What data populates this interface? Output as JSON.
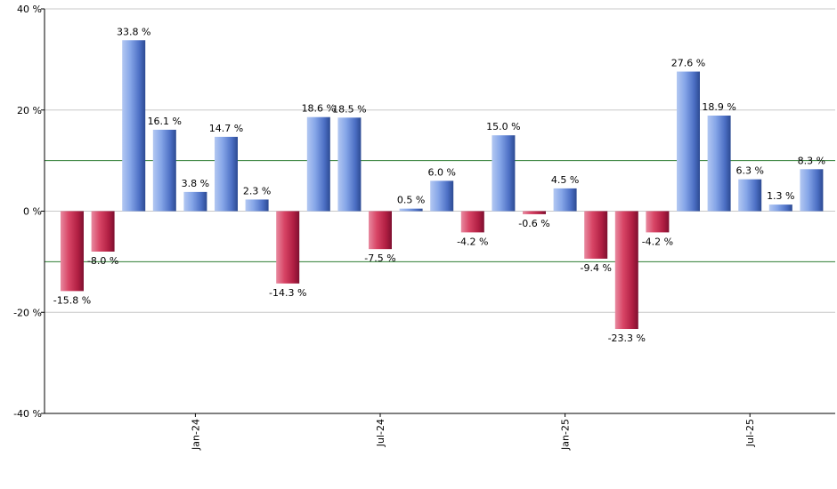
{
  "chart_data": {
    "type": "bar",
    "title": "",
    "xlabel": "",
    "ylabel": "",
    "ylim": [
      -40,
      40
    ],
    "y_ticks": [
      {
        "value": 40,
        "label": "40 %"
      },
      {
        "value": 20,
        "label": "20 %"
      },
      {
        "value": 0,
        "label": "0 %"
      },
      {
        "value": -20,
        "label": "-20 %"
      },
      {
        "value": -40,
        "label": "-40 %"
      }
    ],
    "x_ticks": [
      {
        "index": 4,
        "label": "Jan-24"
      },
      {
        "index": 10,
        "label": "Jul-24"
      },
      {
        "index": 16,
        "label": "Jan-25"
      },
      {
        "index": 22,
        "label": "Jul-25"
      }
    ],
    "reference_lines": [
      10,
      -10
    ],
    "grid": true,
    "colors": {
      "positive": "#7d9fe6",
      "negative": "#cc3355",
      "reference_line": "#2e7d32",
      "grid": "#c8c8c8"
    },
    "bars": [
      {
        "value": -15.8,
        "label": "-15.8 %"
      },
      {
        "value": -8.0,
        "label": "-8.0 %"
      },
      {
        "value": 33.8,
        "label": "33.8 %"
      },
      {
        "value": 16.1,
        "label": "16.1 %"
      },
      {
        "value": 3.8,
        "label": "3.8 %"
      },
      {
        "value": 14.7,
        "label": "14.7 %"
      },
      {
        "value": 2.3,
        "label": "2.3 %"
      },
      {
        "value": -14.3,
        "label": "-14.3 %"
      },
      {
        "value": 18.6,
        "label": "18.6 %"
      },
      {
        "value": 18.5,
        "label": "18.5 %"
      },
      {
        "value": -7.5,
        "label": "-7.5 %"
      },
      {
        "value": 0.5,
        "label": "0.5 %"
      },
      {
        "value": 6.0,
        "label": "6.0 %"
      },
      {
        "value": -4.2,
        "label": "-4.2 %"
      },
      {
        "value": 15.0,
        "label": "15.0 %"
      },
      {
        "value": -0.6,
        "label": "-0.6 %"
      },
      {
        "value": 4.5,
        "label": "4.5 %"
      },
      {
        "value": -9.4,
        "label": "-9.4 %"
      },
      {
        "value": -23.3,
        "label": "-23.3 %"
      },
      {
        "value": -4.2,
        "label": "-4.2 %"
      },
      {
        "value": 27.6,
        "label": "27.6 %"
      },
      {
        "value": 18.9,
        "label": "18.9 %"
      },
      {
        "value": 6.3,
        "label": "6.3 %"
      },
      {
        "value": 1.3,
        "label": "1.3 %"
      },
      {
        "value": 8.3,
        "label": "8.3 %"
      }
    ]
  }
}
